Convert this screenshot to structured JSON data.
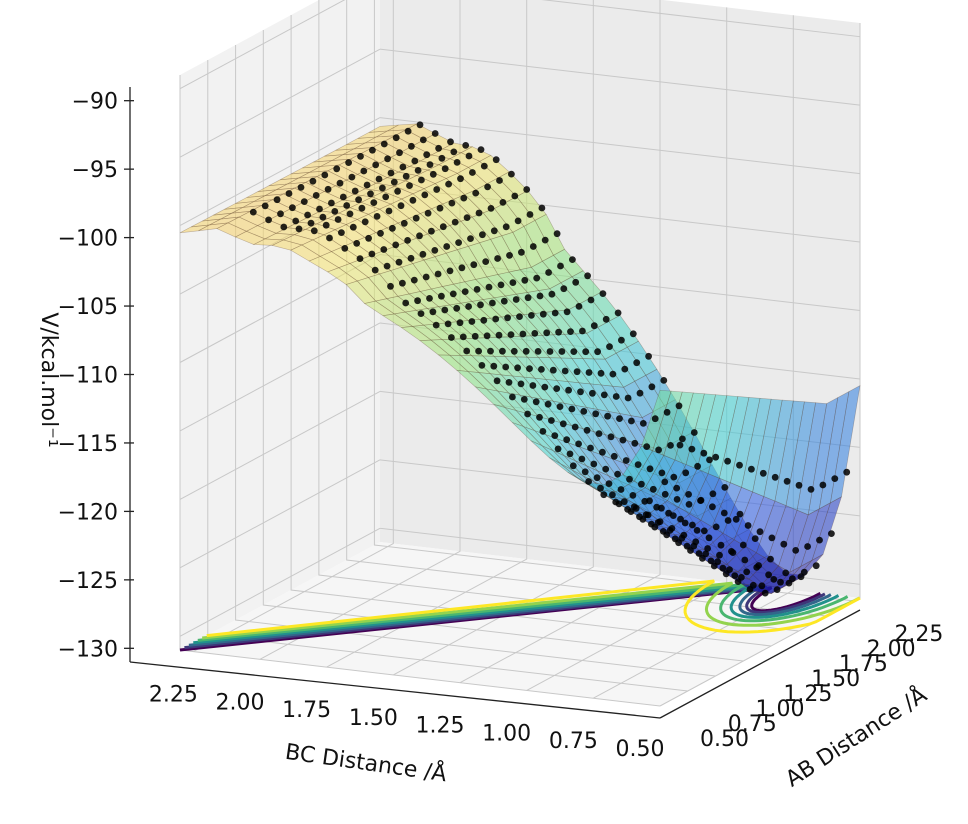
{
  "chart_data": {
    "type": "surface3d",
    "title": "",
    "zlabel": "V/kcal.mol⁻¹",
    "xlabel": "BC Distance /Å",
    "ylabel": "AB Distance /Å",
    "zlim": [
      -131,
      -89
    ],
    "z_ticks": [
      "−90",
      "−95",
      "−100",
      "−105",
      "−110",
      "−115",
      "−120",
      "−125",
      "−130"
    ],
    "z_tick_values": [
      -90,
      -95,
      -100,
      -105,
      -110,
      -115,
      -120,
      -125,
      -130
    ],
    "bc_ticks": [
      "2.25",
      "2.00",
      "1.75",
      "1.50",
      "1.25",
      "1.00",
      "0.75",
      "0.50"
    ],
    "bc_tick_values": [
      2.25,
      2.0,
      1.75,
      1.5,
      1.25,
      1.0,
      0.75,
      0.5
    ],
    "ab_ticks": [
      "0.50",
      "0.75",
      "1.00",
      "1.25",
      "1.50",
      "1.75",
      "2.00",
      "2.25"
    ],
    "ab_tick_values": [
      0.5,
      0.75,
      1.0,
      1.25,
      1.5,
      1.75,
      2.0,
      2.25
    ],
    "bc_range": [
      0.5,
      2.3
    ],
    "ab_range": [
      0.5,
      2.3
    ],
    "minimum": {
      "bc": 0.74,
      "ab": 2.3,
      "v": -130
    },
    "plateau_v": -100,
    "cap_v": -90,
    "grid": true,
    "colormap_surface": "rainbow",
    "colormap_contour": "viridis",
    "point_color": "#000000",
    "contour_levels": [
      -129.0,
      -127.5,
      -125.5,
      -123.0,
      -120.0,
      -116.0,
      -110.0
    ]
  }
}
